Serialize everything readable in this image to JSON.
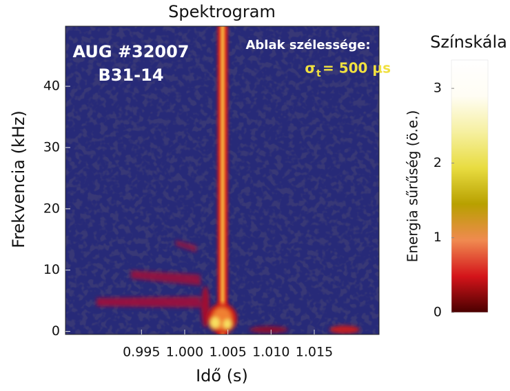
{
  "chart_data": {
    "type": "spectrogram",
    "title": "Spektrogram",
    "xlabel": "Idő (s)",
    "ylabel": "Frekvencia (kHz)",
    "xlim": [
      0.9862,
      1.0225
    ],
    "ylim": [
      -0.5,
      49.8
    ],
    "xticks": [
      0.995,
      {
        "value": 1.0,
        "label": "1.000"
      },
      1.005,
      {
        "value": 1.01,
        "label": "1.010"
      },
      1.015
    ],
    "yticks": [
      0,
      10,
      20,
      30,
      40
    ],
    "annotations": {
      "shot": "AUG #32007",
      "channel": "B31-14",
      "window_label": "Ablak szélessége:",
      "window_symbol": "σ",
      "window_subscript": "t",
      "window_value": "= 500 µs"
    },
    "colorbar": {
      "title": "Színskála",
      "label": "Energia sűrűség (ö.e.)",
      "lim": [
        0,
        3.38
      ],
      "ticks": [
        0,
        1,
        2,
        3
      ],
      "colormap": [
        "#4a0000",
        "#d4141a",
        "#f08a50",
        "#b8a000",
        "#e8dc40",
        "#f6f0a0",
        "#fffdf4",
        "#ffffff"
      ]
    }
  }
}
